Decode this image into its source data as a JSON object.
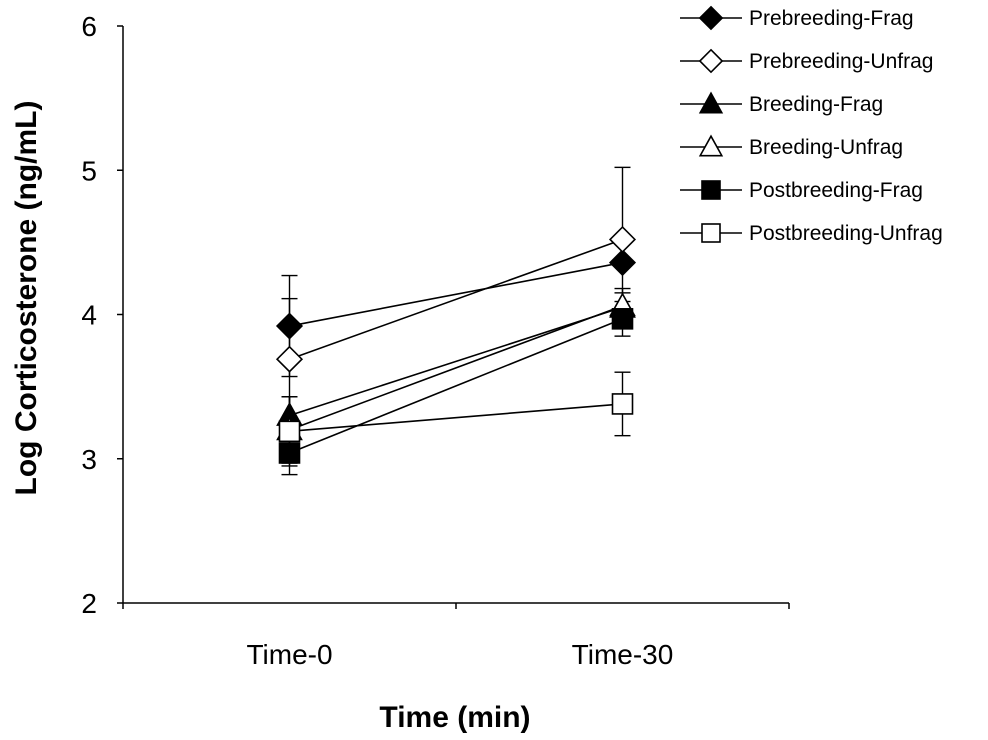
{
  "chart_data": {
    "type": "line",
    "title": "",
    "xlabel": "Time (min)",
    "ylabel": "Log Corticosterone (ng/mL)",
    "categories": [
      "Time-0",
      "Time-30"
    ],
    "ylim": [
      2,
      6
    ],
    "yticks": [
      2,
      3,
      4,
      5,
      6
    ],
    "grid": false,
    "legend_position": "top-right",
    "error_bars": true,
    "series": [
      {
        "name": "Prebreeding-Frag",
        "marker": "diamond",
        "filled": true,
        "values": [
          3.92,
          4.36
        ],
        "errors": [
          0.35,
          0.0
        ]
      },
      {
        "name": "Prebreeding-Unfrag",
        "marker": "diamond",
        "filled": false,
        "values": [
          3.69,
          4.52
        ],
        "errors": [
          0.42,
          0.5
        ]
      },
      {
        "name": "Breeding-Frag",
        "marker": "triangle",
        "filled": true,
        "values": [
          3.3,
          4.05
        ],
        "errors": [
          0.13,
          0.1
        ]
      },
      {
        "name": "Breeding-Unfrag",
        "marker": "triangle",
        "filled": false,
        "values": [
          3.2,
          4.06
        ],
        "errors": [
          0.23,
          0.12
        ]
      },
      {
        "name": "Postbreeding-Frag",
        "marker": "square",
        "filled": true,
        "values": [
          3.04,
          3.97
        ],
        "errors": [
          0.15,
          0.12
        ]
      },
      {
        "name": "Postbreeding-Unfrag",
        "marker": "square",
        "filled": false,
        "values": [
          3.19,
          3.38
        ],
        "errors": [
          0.24,
          0.22
        ]
      }
    ]
  }
}
